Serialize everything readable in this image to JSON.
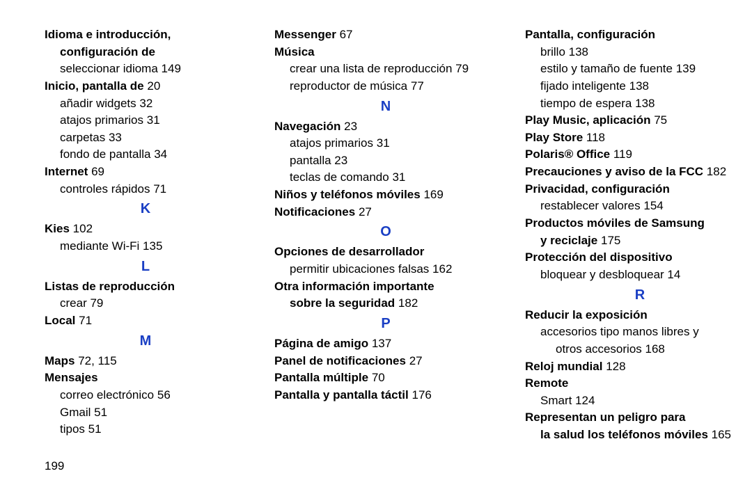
{
  "pageNumber": "199",
  "letters": {
    "K": "K",
    "L": "L",
    "M": "M",
    "N": "N",
    "O": "O",
    "P": "P",
    "R": "R"
  },
  "col1": {
    "idioma": {
      "l1": "Idioma e introducción,",
      "l2": "configuración de",
      "sub1": "seleccionar idioma",
      "sub1p": "149"
    },
    "inicio": {
      "title": "Inicio, pantalla de",
      "titlep": "20",
      "s1": "añadir widgets",
      "s1p": "32",
      "s2": "atajos primarios",
      "s2p": "31",
      "s3": "carpetas",
      "s3p": "33",
      "s4": "fondo de pantalla",
      "s4p": "34"
    },
    "internet": {
      "title": "Internet",
      "titlep": "69",
      "s1": "controles rápidos",
      "s1p": "71"
    },
    "kies": {
      "title": "Kies",
      "titlep": "102",
      "s1": "mediante Wi-Fi",
      "s1p": "135"
    },
    "listas": {
      "title": "Listas de reproducción",
      "s1": "crear",
      "s1p": "79"
    },
    "local": {
      "title": "Local",
      "titlep": "71"
    },
    "maps": {
      "title": "Maps",
      "titlep": "72, 115"
    },
    "mensajes": {
      "title": "Mensajes",
      "s1": "correo electrónico",
      "s1p": "56",
      "s2": "Gmail",
      "s2p": "51",
      "s3": "tipos",
      "s3p": "51"
    }
  },
  "col2": {
    "messenger": {
      "title": "Messenger",
      "titlep": "67"
    },
    "musica": {
      "title": "Música",
      "s1": "crear una lista de reproducción",
      "s1p": "79",
      "s2": "reproductor de música",
      "s2p": "77"
    },
    "navegacion": {
      "title": "Navegación",
      "titlep": "23",
      "s1": "atajos primarios",
      "s1p": "31",
      "s2": "pantalla",
      "s2p": "23",
      "s3": "teclas de comando",
      "s3p": "31"
    },
    "ninos": {
      "title": "Niños y teléfonos móviles",
      "titlep": "169"
    },
    "notif": {
      "title": "Notificaciones",
      "titlep": "27"
    },
    "opciones": {
      "title": "Opciones de desarrollador",
      "s1": "permitir ubicaciones falsas",
      "s1p": "162"
    },
    "otra": {
      "l1": "Otra información importante",
      "l2": "sobre la seguridad",
      "l2p": "182"
    },
    "pagina": {
      "title": "Página de amigo",
      "titlep": "137"
    },
    "panel": {
      "title": "Panel de notificaciones",
      "titlep": "27"
    },
    "pmult": {
      "title": "Pantalla múltiple",
      "titlep": "70"
    },
    "ptactil": {
      "title": "Pantalla y pantalla táctil",
      "titlep": "176"
    }
  },
  "col3": {
    "pantalla": {
      "title": "Pantalla, configuración",
      "s1": "brillo",
      "s1p": "138",
      "s2": "estilo y tamaño de fuente",
      "s2p": "139",
      "s3": "fijado inteligente",
      "s3p": "138",
      "s4": "tiempo de espera",
      "s4p": "138"
    },
    "playmusic": {
      "title": "Play Music, aplicación",
      "titlep": "75"
    },
    "playstore": {
      "title": "Play Store",
      "titlep": "118"
    },
    "polaris": {
      "title": "Polaris® Office",
      "titlep": "119"
    },
    "precauciones": {
      "title": "Precauciones y aviso de la FCC",
      "titlep": "182"
    },
    "privacidad": {
      "title": "Privacidad, configuración",
      "s1": "restablecer valores",
      "s1p": "154"
    },
    "productos": {
      "l1": "Productos móviles de Samsung",
      "l2": "y reciclaje",
      "l2p": "175"
    },
    "proteccion": {
      "title": "Protección del dispositivo",
      "s1": "bloquear y desbloquear",
      "s1p": "14"
    },
    "reducir": {
      "title": "Reducir la exposición",
      "s1": "accesorios tipo manos libres y",
      "s2": "otros accesorios",
      "s2p": "168"
    },
    "reloj": {
      "title": "Reloj mundial",
      "titlep": "128"
    },
    "remote": {
      "title": "Remote",
      "s1": "Smart",
      "s1p": "124"
    },
    "representan": {
      "l1": "Representan un peligro para",
      "l2": "la salud los teléfonos móviles",
      "l2p": "165"
    }
  }
}
